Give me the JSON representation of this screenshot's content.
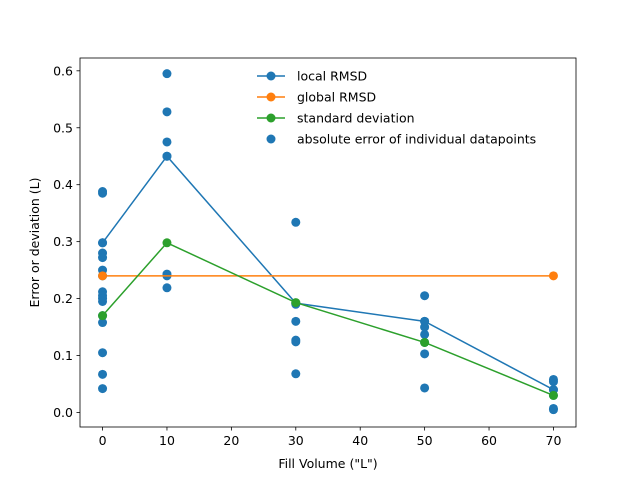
{
  "chart_data": {
    "type": "line",
    "title": "",
    "xlabel": "Fill Volume (\"L\")",
    "ylabel": "Error or deviation (L)",
    "xlim": [
      -3.5,
      73.5
    ],
    "ylim": [
      -0.0255,
      0.6225
    ],
    "xticks": [
      0,
      10,
      20,
      30,
      40,
      50,
      60,
      70
    ],
    "yticks": [
      0.0,
      0.1,
      0.2,
      0.3,
      0.4,
      0.5,
      0.6
    ],
    "xtick_labels": [
      "0",
      "10",
      "20",
      "30",
      "40",
      "50",
      "60",
      "70"
    ],
    "ytick_labels": [
      "0.0",
      "0.1",
      "0.2",
      "0.3",
      "0.4",
      "0.5",
      "0.6"
    ],
    "grid": false,
    "legend_position": "upper-center",
    "series": [
      {
        "name": "local RMSD",
        "kind": "line-marker",
        "color": "#1f77b4",
        "x": [
          0,
          10,
          30,
          50,
          70
        ],
        "y": [
          0.298,
          0.45,
          0.192,
          0.16,
          0.04
        ]
      },
      {
        "name": "global RMSD",
        "kind": "line-marker",
        "color": "#ff7f0e",
        "x": [
          0,
          70
        ],
        "y": [
          0.24,
          0.24
        ]
      },
      {
        "name": "standard deviation",
        "kind": "line-marker",
        "color": "#2ca02c",
        "x": [
          0,
          10,
          30,
          50,
          70
        ],
        "y": [
          0.17,
          0.298,
          0.193,
          0.123,
          0.03
        ]
      },
      {
        "name": "absolute error of individual datapoints",
        "kind": "scatter",
        "color": "#1f77b4",
        "x": [
          0,
          0,
          0,
          0,
          0,
          0,
          0,
          0,
          0,
          0,
          0,
          0,
          0,
          0,
          0,
          0,
          10,
          10,
          10,
          10,
          10,
          10,
          10,
          30,
          30,
          30,
          30,
          30,
          30,
          30,
          50,
          50,
          50,
          50,
          50,
          50,
          50,
          70,
          70,
          70,
          70,
          70,
          70
        ],
        "y": [
          0.385,
          0.388,
          0.298,
          0.28,
          0.272,
          0.25,
          0.24,
          0.212,
          0.205,
          0.195,
          0.17,
          0.158,
          0.105,
          0.067,
          0.042,
          0.2,
          0.595,
          0.528,
          0.475,
          0.45,
          0.243,
          0.24,
          0.219,
          0.334,
          0.192,
          0.16,
          0.127,
          0.124,
          0.068,
          0.19,
          0.205,
          0.16,
          0.15,
          0.137,
          0.103,
          0.043,
          0.123,
          0.058,
          0.054,
          0.04,
          0.03,
          0.007,
          0.005
        ]
      }
    ]
  }
}
